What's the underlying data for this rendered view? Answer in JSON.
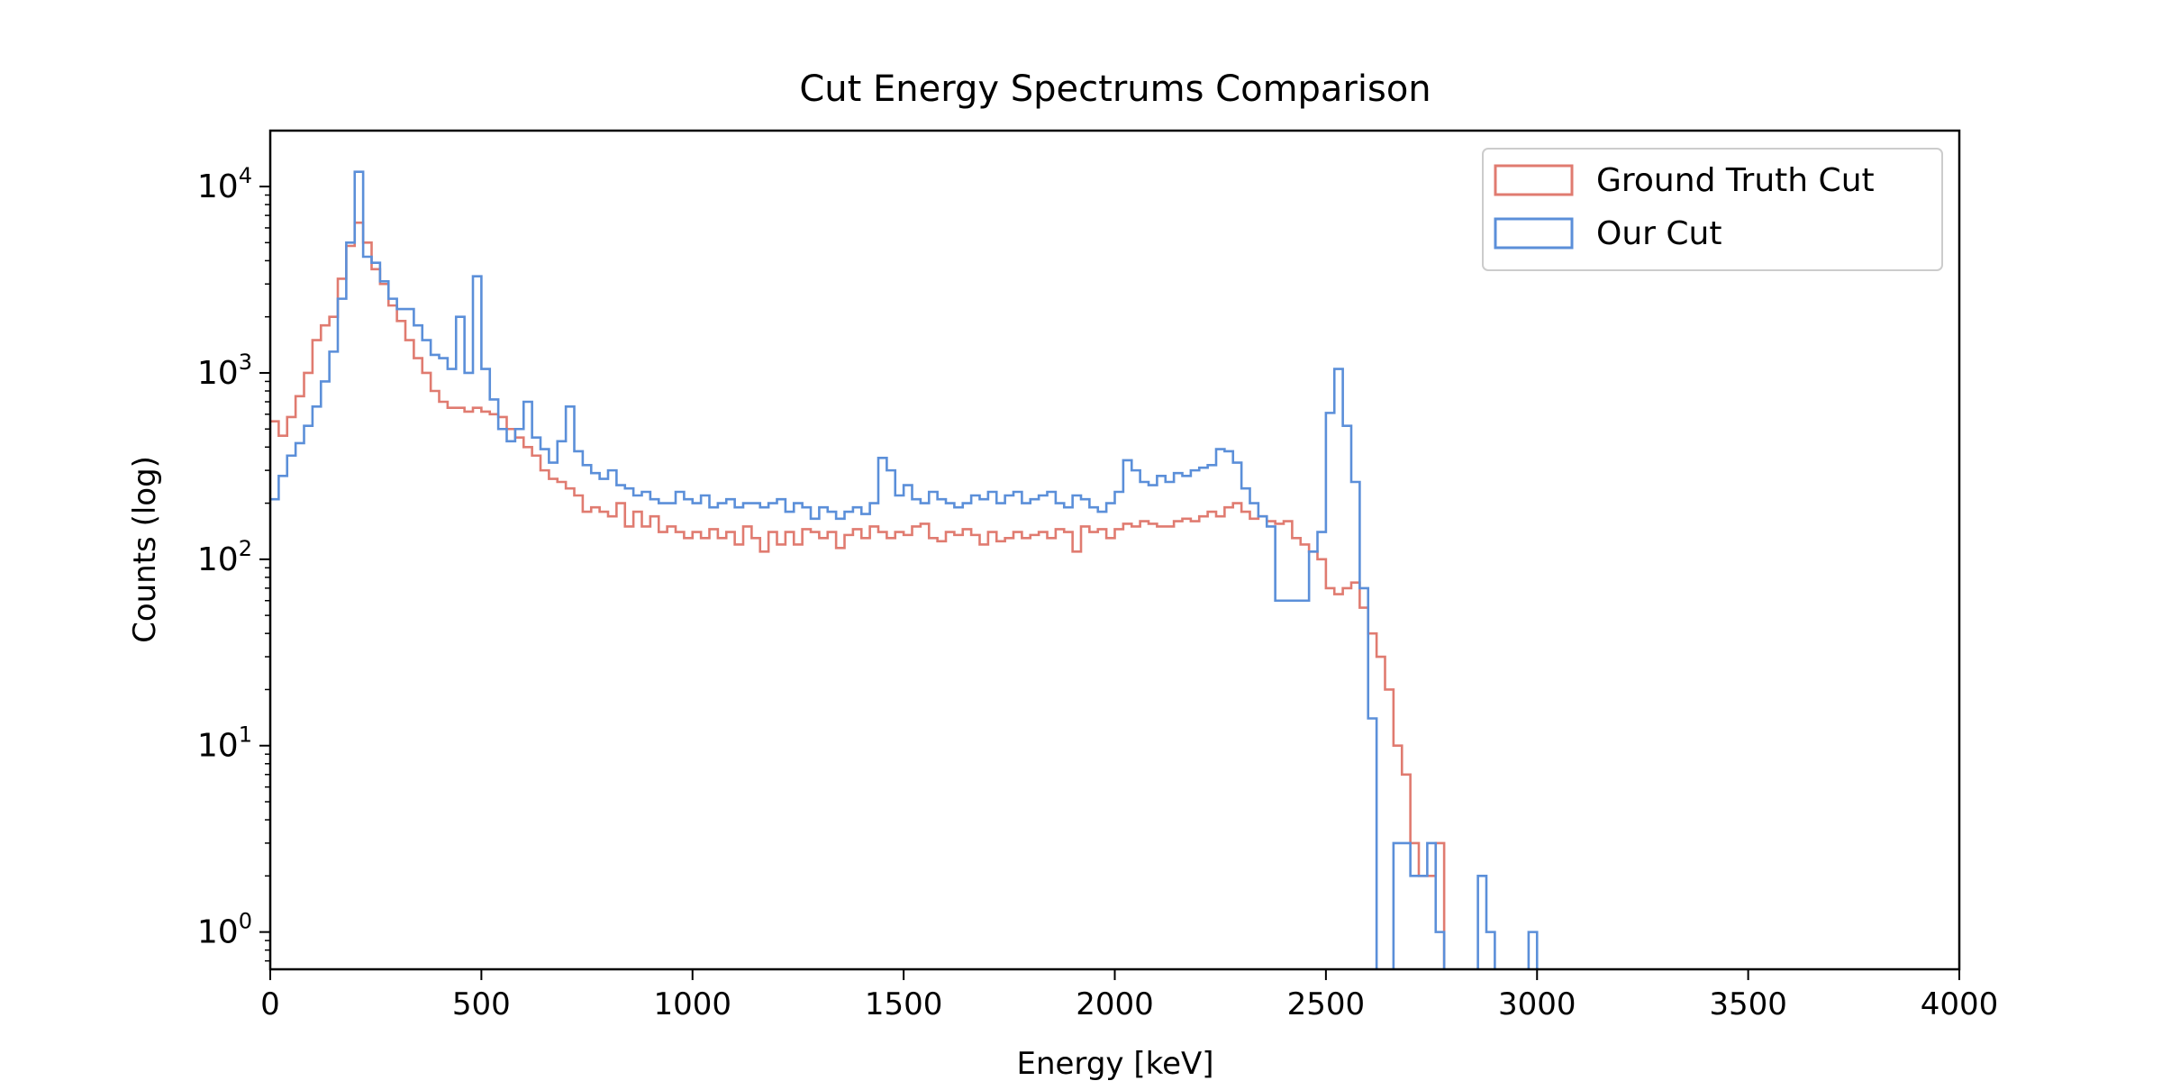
{
  "chart_data": {
    "type": "step-histogram",
    "title": "Cut Energy Spectrums Comparison",
    "xlabel": "Energy [keV]",
    "ylabel": "Counts (log)",
    "xlim": [
      0,
      4000
    ],
    "ylim_log10": [
      -0.2,
      4.3
    ],
    "y_scale": "log",
    "bin_width_keV": 20,
    "grid": false,
    "legend_position": "top-right",
    "x_ticks": [
      {
        "value": 0,
        "label": "0"
      },
      {
        "value": 500,
        "label": "500"
      },
      {
        "value": 1000,
        "label": "1000"
      },
      {
        "value": 1500,
        "label": "1500"
      },
      {
        "value": 2000,
        "label": "2000"
      },
      {
        "value": 2500,
        "label": "2500"
      },
      {
        "value": 3000,
        "label": "3000"
      },
      {
        "value": 3500,
        "label": "3500"
      },
      {
        "value": 4000,
        "label": "4000"
      }
    ],
    "y_ticks": [
      {
        "exp": 0,
        "base": "10",
        "sup": "0"
      },
      {
        "exp": 1,
        "base": "10",
        "sup": "1"
      },
      {
        "exp": 2,
        "base": "10",
        "sup": "2"
      },
      {
        "exp": 3,
        "base": "10",
        "sup": "3"
      },
      {
        "exp": 4,
        "base": "10",
        "sup": "4"
      }
    ],
    "series": [
      {
        "name": "Ground Truth Cut",
        "color": "#e07b70",
        "x_start": 0,
        "values": [
          550,
          460,
          580,
          750,
          1000,
          1500,
          1800,
          2000,
          3200,
          4800,
          6400,
          5000,
          3600,
          3000,
          2300,
          1900,
          1500,
          1200,
          1000,
          800,
          700,
          650,
          650,
          620,
          650,
          620,
          600,
          580,
          500,
          450,
          400,
          360,
          300,
          270,
          260,
          240,
          220,
          180,
          190,
          180,
          170,
          200,
          150,
          180,
          150,
          170,
          140,
          150,
          140,
          130,
          140,
          130,
          145,
          130,
          140,
          120,
          150,
          130,
          110,
          140,
          120,
          140,
          120,
          145,
          140,
          130,
          140,
          115,
          135,
          145,
          130,
          150,
          140,
          130,
          140,
          135,
          150,
          155,
          130,
          125,
          140,
          135,
          145,
          135,
          120,
          140,
          125,
          130,
          140,
          130,
          135,
          140,
          130,
          145,
          140,
          110,
          150,
          140,
          145,
          130,
          145,
          155,
          150,
          160,
          155,
          150,
          150,
          160,
          165,
          160,
          170,
          180,
          170,
          190,
          200,
          180,
          165,
          170,
          160,
          155,
          160,
          130,
          120,
          110,
          100,
          70,
          65,
          70,
          75,
          55,
          40,
          30,
          20,
          10,
          7,
          3,
          2,
          2,
          3,
          0,
          0,
          0,
          0,
          0,
          0,
          0,
          0,
          0,
          0,
          0,
          0,
          0,
          0,
          0,
          0,
          0,
          0,
          0,
          0,
          0,
          0,
          0,
          0,
          0,
          0,
          0,
          0,
          0,
          0,
          0,
          0,
          0,
          0,
          0,
          0,
          0,
          0,
          0,
          0,
          0,
          0,
          0,
          0,
          0,
          0,
          0,
          0,
          0,
          0,
          0,
          0,
          0,
          0,
          0,
          0,
          0,
          0,
          0
        ]
      },
      {
        "name": "Our Cut",
        "color": "#5b8fd9",
        "x_start": 0,
        "values": [
          210,
          280,
          360,
          420,
          520,
          660,
          900,
          1300,
          2500,
          5000,
          12000,
          4200,
          3900,
          3100,
          2500,
          2200,
          2200,
          1800,
          1500,
          1250,
          1200,
          1050,
          2000,
          1000,
          3300,
          1050,
          720,
          500,
          430,
          500,
          700,
          450,
          390,
          330,
          430,
          660,
          380,
          320,
          290,
          270,
          300,
          250,
          240,
          220,
          230,
          210,
          200,
          200,
          230,
          210,
          200,
          220,
          190,
          200,
          210,
          190,
          200,
          200,
          190,
          200,
          210,
          180,
          200,
          190,
          165,
          190,
          180,
          165,
          180,
          190,
          175,
          200,
          350,
          300,
          220,
          250,
          210,
          200,
          230,
          210,
          200,
          190,
          200,
          220,
          210,
          230,
          200,
          220,
          230,
          200,
          210,
          220,
          230,
          200,
          190,
          220,
          210,
          190,
          180,
          200,
          230,
          340,
          300,
          260,
          250,
          280,
          260,
          290,
          280,
          300,
          310,
          320,
          390,
          380,
          330,
          240,
          200,
          170,
          150,
          60,
          60,
          60,
          60,
          110,
          140,
          610,
          1050,
          520,
          260,
          70,
          14,
          0,
          0,
          3,
          3,
          2,
          2,
          3,
          1,
          0,
          0,
          0,
          0,
          2,
          1,
          0,
          0,
          0,
          0,
          1,
          0,
          0,
          0,
          0,
          0,
          0,
          0,
          0,
          0,
          0,
          0,
          0,
          0,
          0,
          0,
          0,
          0,
          0,
          0,
          0,
          0,
          0,
          0,
          0,
          0,
          0,
          0,
          0,
          0,
          0,
          0,
          0,
          0,
          0,
          0,
          0,
          0,
          0,
          0,
          0,
          0,
          0,
          0,
          0,
          0,
          0,
          0,
          0,
          0,
          0,
          0,
          0
        ]
      }
    ]
  }
}
